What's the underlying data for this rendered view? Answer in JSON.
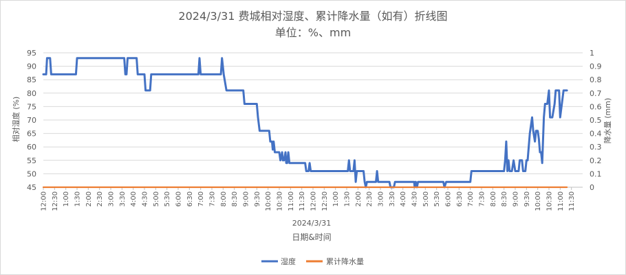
{
  "chart_data": {
    "type": "line",
    "title": "2024/3/31 费城相对湿度、累计降水量（如有）折线图",
    "subtitle": "单位：%、mm",
    "xlabel": "日期&时间",
    "x_group_label": "2024/3/31",
    "ylabel_left": "相对湿度 (%)",
    "ylabel_right": "降水量 (mm)",
    "ylim_left": [
      45,
      95
    ],
    "ylim_right": [
      0,
      1
    ],
    "yticks_left": [
      "45",
      "50",
      "55",
      "60",
      "65",
      "70",
      "75",
      "80",
      "85",
      "90",
      "95"
    ],
    "yticks_right": [
      "0",
      "0.1",
      "0.2",
      "0.3",
      "0.4",
      "0.5",
      "0.6",
      "0.7",
      "0.8",
      "0.9",
      "1"
    ],
    "x_tick_labels": [
      "12:00",
      "12:30",
      "1:00",
      "1:30",
      "2:00",
      "2:30",
      "3:00",
      "3:30",
      "4:00",
      "4:30",
      "5:00",
      "5:30",
      "6:00",
      "6:30",
      "7:00",
      "7:30",
      "8:00",
      "8:30",
      "9:00",
      "9:30",
      "10:00",
      "10:30",
      "11:00",
      "11:30",
      "12:00",
      "12:30",
      "1:00",
      "1:30",
      "2:00",
      "2:30",
      "3:00",
      "3:30",
      "4:00",
      "4:30",
      "5:00",
      "5:30",
      "6:00",
      "6:30",
      "7:00",
      "7:30",
      "8:00",
      "8:30",
      "9:00",
      "9:30",
      "10:00",
      "10:30",
      "11:00",
      "11:30"
    ],
    "x_range_hours": [
      0,
      24
    ],
    "grid": true,
    "legend_position": "bottom",
    "colors": {
      "humidity": "#4472c4",
      "precip": "#ed7d31"
    },
    "series": [
      {
        "name": "湿度",
        "axis": "left",
        "points": [
          [
            0,
            87
          ],
          [
            0.25,
            87
          ],
          [
            0.33,
            93
          ],
          [
            0.6,
            93
          ],
          [
            0.7,
            87
          ],
          [
            1.5,
            87
          ],
          [
            2.9,
            87
          ],
          [
            3,
            93
          ],
          [
            7.2,
            93
          ],
          [
            7.3,
            87
          ],
          [
            7.4,
            87
          ],
          [
            7.5,
            93
          ],
          [
            8.3,
            93
          ],
          [
            8.4,
            87
          ],
          [
            9.0,
            87
          ],
          [
            9.1,
            81
          ],
          [
            9.5,
            81
          ],
          [
            9.6,
            87
          ],
          [
            13.8,
            87
          ],
          [
            13.9,
            93
          ],
          [
            14.0,
            87
          ],
          [
            15.8,
            87
          ],
          [
            15.9,
            93
          ],
          [
            16.05,
            87
          ],
          [
            16.3,
            81
          ],
          [
            17.8,
            81
          ],
          [
            17.9,
            76
          ],
          [
            19.0,
            76
          ],
          [
            19.1,
            71
          ],
          [
            19.25,
            66
          ],
          [
            20.1,
            66
          ],
          [
            20.2,
            62
          ],
          [
            20.35,
            62
          ],
          [
            20.42,
            59
          ],
          [
            20.5,
            62
          ],
          [
            20.6,
            58
          ],
          [
            21.0,
            58
          ],
          [
            21.1,
            55
          ],
          [
            21.25,
            58
          ],
          [
            21.32,
            55
          ],
          [
            21.42,
            55
          ],
          [
            21.55,
            58
          ],
          [
            21.62,
            54
          ],
          [
            21.7,
            54
          ],
          [
            21.8,
            58
          ],
          [
            21.9,
            54
          ],
          [
            23.3,
            54
          ],
          [
            23.4,
            51
          ],
          [
            23.6,
            51
          ],
          [
            23.7,
            54
          ],
          [
            23.8,
            51
          ],
          [
            27.1,
            51
          ],
          [
            27.2,
            55
          ],
          [
            27.3,
            51
          ],
          [
            27.6,
            51
          ],
          [
            27.7,
            55
          ],
          [
            27.8,
            47
          ],
          [
            27.9,
            51
          ],
          [
            28.5,
            51
          ],
          [
            28.6,
            47
          ],
          [
            28.7,
            45
          ],
          [
            28.8,
            47
          ],
          [
            29.6,
            47
          ],
          [
            29.7,
            51
          ],
          [
            29.8,
            47
          ],
          [
            30.8,
            47
          ],
          [
            30.9,
            45
          ],
          [
            31.2,
            45
          ],
          [
            31.3,
            47
          ],
          [
            33.0,
            47
          ],
          [
            33.05,
            45
          ],
          [
            33.15,
            47
          ],
          [
            33.25,
            45
          ],
          [
            33.35,
            47
          ],
          [
            35.6,
            47
          ],
          [
            35.7,
            45
          ],
          [
            35.85,
            47
          ],
          [
            38.0,
            47
          ],
          [
            38.1,
            51
          ],
          [
            41.0,
            51
          ],
          [
            41.1,
            55
          ],
          [
            41.2,
            62
          ],
          [
            41.3,
            51
          ],
          [
            41.4,
            55
          ],
          [
            41.5,
            51
          ],
          [
            41.7,
            51
          ],
          [
            41.85,
            55
          ],
          [
            42.0,
            51
          ],
          [
            42.3,
            51
          ],
          [
            42.4,
            55
          ],
          [
            42.6,
            55
          ],
          [
            42.7,
            51
          ],
          [
            42.9,
            51
          ],
          [
            43.0,
            55
          ],
          [
            43.1,
            55
          ],
          [
            43.3,
            65
          ],
          [
            43.5,
            71
          ],
          [
            43.6,
            66
          ],
          [
            43.75,
            62
          ],
          [
            43.85,
            66
          ],
          [
            44.0,
            66
          ],
          [
            44.1,
            63
          ],
          [
            44.2,
            58
          ],
          [
            44.3,
            58
          ],
          [
            44.4,
            54
          ],
          [
            44.55,
            71
          ],
          [
            44.65,
            76
          ],
          [
            44.85,
            76
          ],
          [
            45.0,
            81
          ],
          [
            45.1,
            71
          ],
          [
            45.3,
            71
          ],
          [
            45.5,
            76
          ],
          [
            45.6,
            81
          ],
          [
            45.9,
            81
          ],
          [
            46.0,
            71
          ],
          [
            46.3,
            81
          ],
          [
            46.6,
            81
          ]
        ]
      },
      {
        "name": "累计降水量",
        "axis": "right",
        "points": [
          [
            0,
            0
          ],
          [
            46.6,
            0
          ]
        ]
      }
    ]
  },
  "legend": {
    "humidity": "湿度",
    "precip": "累计降水量"
  }
}
